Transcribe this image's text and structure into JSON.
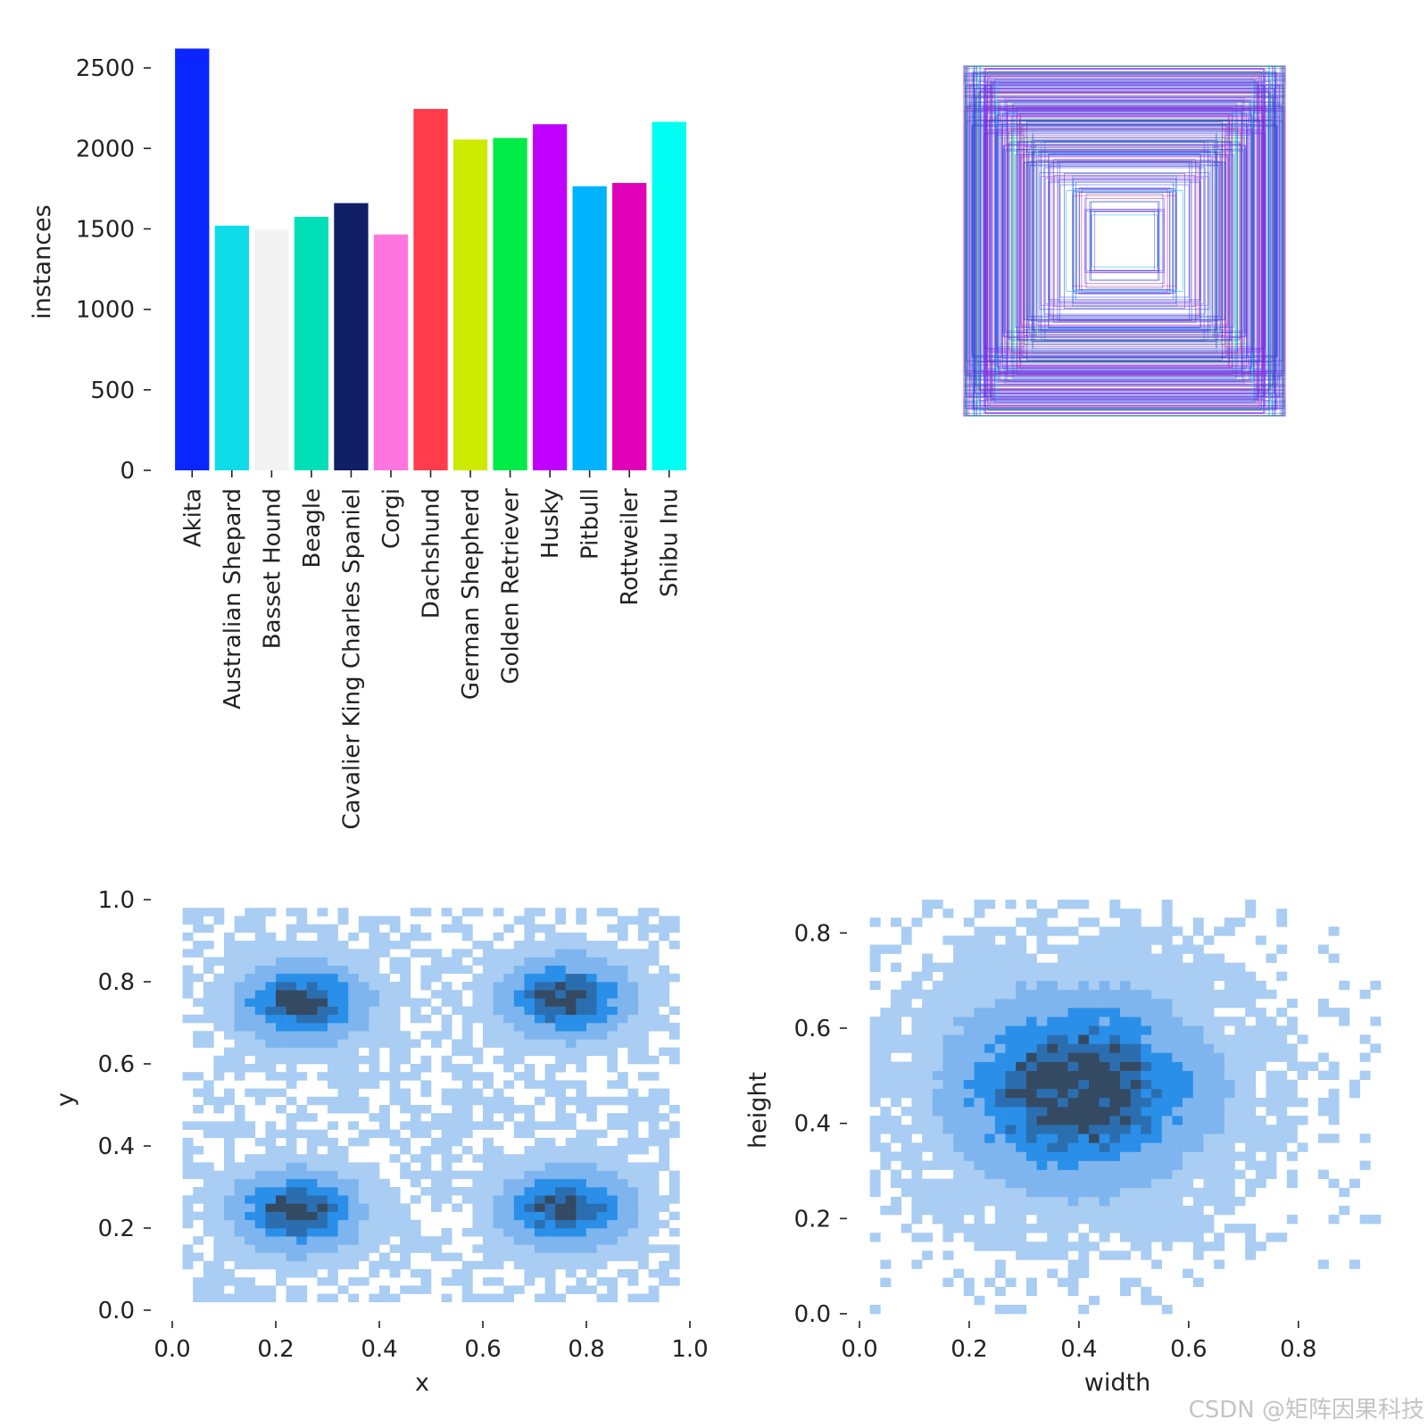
{
  "chart_data": [
    {
      "type": "bar",
      "ylabel": "instances",
      "ylim": [
        0,
        2700
      ],
      "yticks": [
        0,
        500,
        1000,
        1500,
        2000,
        2500
      ],
      "categories": [
        "Akita",
        "Australian Shepard",
        "Basset Hound",
        "Beagle",
        "Cavalier King Charles Spaniel",
        "Corgi",
        "Dachshund",
        "German Shepherd",
        "Golden Retriever",
        "Husky",
        "Pitbull",
        "Rottweiler",
        "Shibu Inu"
      ],
      "values": [
        2620,
        1520,
        1495,
        1575,
        1660,
        1465,
        2245,
        2055,
        2065,
        2150,
        1765,
        1785,
        2165
      ],
      "colors": [
        "#0a26ff",
        "#0edce8",
        "#f2f2f2",
        "#00e0b8",
        "#111f66",
        "#ff75df",
        "#ff3b4c",
        "#cdeb00",
        "#00eb48",
        "#c000ff",
        "#00b3ff",
        "#e000b8",
        "#00fff2"
      ]
    },
    {
      "type": "scatter",
      "description": "overlaid bounding boxes centered in a square panel",
      "xlim": [
        0,
        1
      ],
      "ylim": [
        0,
        1
      ],
      "box_width_range": [
        0.05,
        0.36
      ],
      "box_height_range": [
        0.04,
        0.38
      ]
    },
    {
      "type": "heatmap",
      "xlabel": "x",
      "ylabel": "y",
      "xlim": [
        0,
        1
      ],
      "ylim": [
        0,
        1
      ],
      "xticks": [
        0.0,
        0.2,
        0.4,
        0.6,
        0.8,
        1.0
      ],
      "yticks": [
        0.0,
        0.2,
        0.4,
        0.6,
        0.8,
        1.0
      ],
      "clusters": [
        [
          0.25,
          0.75
        ],
        [
          0.76,
          0.76
        ],
        [
          0.24,
          0.24
        ],
        [
          0.76,
          0.25
        ]
      ],
      "color_light": "#a9cdf3",
      "color_mid": "#2a8fe8",
      "color_dark": "#344a62"
    },
    {
      "type": "heatmap",
      "xlabel": "width",
      "ylabel": "height",
      "xlim": [
        0,
        0.95
      ],
      "ylim": [
        0,
        0.87
      ],
      "xticks": [
        0.0,
        0.2,
        0.4,
        0.6,
        0.8
      ],
      "yticks": [
        0.0,
        0.2,
        0.4,
        0.6,
        0.8
      ],
      "peak": [
        0.4,
        0.47
      ],
      "color_light": "#a9cdf3",
      "color_mid": "#2a8fe8",
      "color_dark": "#344a62"
    }
  ],
  "watermark": "CSDN @矩阵因果科技"
}
